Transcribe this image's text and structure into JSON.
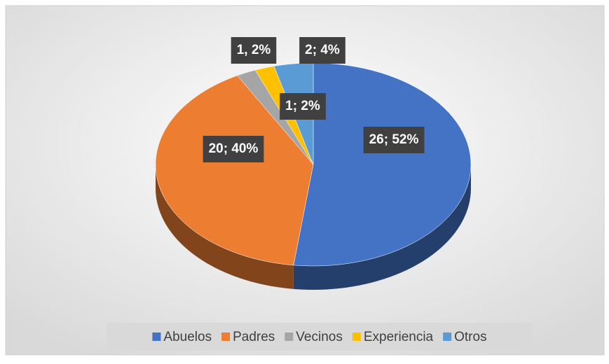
{
  "chart_data": {
    "type": "pie",
    "categories": [
      "Abuelos",
      "Padres",
      "Vecinos",
      "Experiencia",
      "Otros"
    ],
    "values": [
      26,
      20,
      1,
      1,
      2
    ],
    "value_labels": [
      "26; 52%",
      "20; 40%",
      "1, 2%",
      "1; 2%",
      "2; 4%"
    ],
    "colors": [
      "#4472c4",
      "#ed7d31",
      "#a5a5a5",
      "#ffc000",
      "#5b9bd5"
    ],
    "legend": "bottom"
  }
}
